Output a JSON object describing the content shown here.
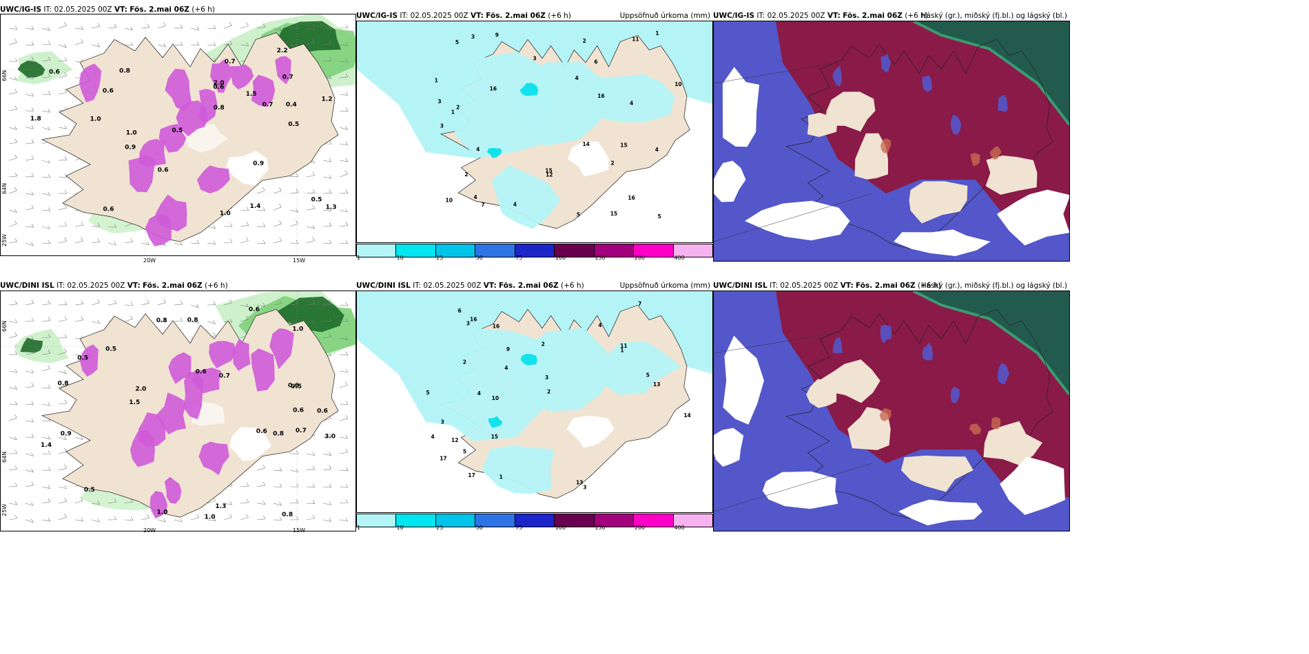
{
  "rows": [
    {
      "left": {
        "model": "UWC/IG-IS",
        "it_label": "IT:",
        "it": "02.05.2025 00Z",
        "vt_label": "VT:",
        "vt": "Fös. 2.mai 06Z",
        "lead": "(+6 h)",
        "right_title": ""
      },
      "middle": {
        "model": "UWC/IG-IS",
        "it_label": "IT:",
        "it": "02.05.2025 00Z",
        "vt_label": "VT:",
        "vt": "Fös. 2.mai 06Z",
        "lead": "(+6 h)",
        "right_title": "Uppsöfnuð úrkoma (mm)"
      },
      "right": {
        "model": "UWC/IG-IS",
        "it_label": "IT:",
        "it": "02.05.2025 00Z",
        "vt_label": "VT:",
        "vt": "Fös. 2.mai 06Z",
        "lead": "(+6 h)",
        "right_title": "Háský (gr.), miðský (fj.bl.) og lágský (bl.)"
      }
    },
    {
      "left": {
        "model": "UWC/DINI ISL",
        "it_label": "IT:",
        "it": "02.05.2025 00Z",
        "vt_label": "VT:",
        "vt": "Fös. 2.mai 06Z",
        "lead": "(+6 h)",
        "right_title": ""
      },
      "middle": {
        "model": "UWC/DINI ISL",
        "it_label": "IT:",
        "it": "02.05.2025 00Z",
        "vt_label": "VT:",
        "vt": "Fös. 2.mai 06Z",
        "lead": "(+6 h)",
        "right_title": "Uppsöfnuð úrkoma (mm)"
      },
      "right": {
        "model": "UWC/DINI ISL",
        "it_label": "IT:",
        "it": "02.05.2025 00Z",
        "vt_label": "VT:",
        "vt": "Fös. 2.mai 06Z",
        "lead": "(+6 h)",
        "right_title": "Háský (gr.), miðský (fj.bl.) og lágský (bl.)"
      }
    }
  ],
  "axis_labels": {
    "w20": "20W",
    "w15": "15W",
    "n66": "66N",
    "n64": "64N",
    "w25": "25W"
  },
  "colorbar": {
    "ticks": [
      "1",
      "10",
      "25",
      "50",
      "75",
      "100",
      "150",
      "200",
      "400"
    ],
    "colors": [
      "#b3f5f7",
      "#00e6f0",
      "#00c4ea",
      "#2f74e6",
      "#1c25c9",
      "#6a0050",
      "#a3007e",
      "#ff00c8",
      "#f7b3f0"
    ]
  },
  "colors": {
    "land": "#f1e3d2",
    "precip_light": "#b4f4f7",
    "green_light": "#c9f0c6",
    "green_mid": "#7fd27b",
    "green_dark": "#1f6a2a",
    "snow": "#cf5ad8",
    "cloud_low": "#5357c9",
    "cloud_mid": "#8a1a48",
    "cloud_high": "#235a4e",
    "cloud_edge": "#c86a52"
  },
  "left_values_top": [
    "0.7",
    "0.8",
    "1.0",
    "0.9",
    "0.5",
    "0.6",
    "1.3",
    "0.4",
    "1.5",
    "1.2",
    "2.0",
    "0.6",
    "0.8",
    "0.5",
    "1.0",
    "0.6",
    "0.7",
    "0.9",
    "1.0",
    "0.7",
    "1.4",
    "2.2",
    "1.8",
    "0.5",
    "0.6",
    "0.6"
  ],
  "left_values_bot": [
    "0.8",
    "0.8",
    "0.9",
    "0.8",
    "1.0",
    "0.5",
    "0.6",
    "1.0",
    "0.6",
    "0.5",
    "1.4",
    "0.6",
    "0.7",
    "1.0",
    "3.0",
    "1.5",
    "2.0",
    "0.8",
    "0.6",
    "0.5",
    "0.8",
    "0.6",
    "0.5",
    "1.3",
    "0.7",
    "0.6"
  ],
  "mid_values_top": [
    "3",
    "2",
    "3",
    "4",
    "4",
    "3",
    "5",
    "4",
    "15",
    "12",
    "10",
    "15",
    "16",
    "9",
    "6",
    "5",
    "4",
    "14",
    "11",
    "10",
    "16",
    "7",
    "5",
    "2",
    "4",
    "2",
    "3",
    "1",
    "15",
    "16",
    "1",
    "1",
    "4",
    "2"
  ],
  "mid_values_bot": [
    "4",
    "3",
    "3",
    "4",
    "2",
    "4",
    "5",
    "14",
    "10",
    "12",
    "17",
    "16",
    "6",
    "5",
    "11",
    "15",
    "17",
    "9",
    "7",
    "13",
    "4",
    "2",
    "3",
    "1",
    "13",
    "16",
    "1",
    "2",
    "3",
    "5"
  ]
}
